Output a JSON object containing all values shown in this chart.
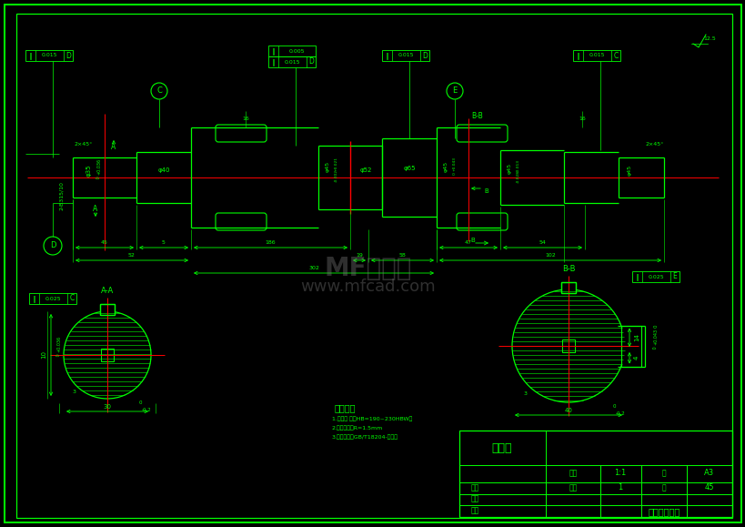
{
  "bg_color": "#000000",
  "gc": "#00ff00",
  "rc": "#ff0000",
  "wc": "#ffffff",
  "title_block": {
    "part_name": "输出轴",
    "scale": "1:1",
    "paper": "A3",
    "sheet": "1",
    "total": "45",
    "company": "机械课程设计",
    "label1": "材料",
    "label2": "审核",
    "label3": "批准",
    "label4": "比例",
    "label5": "版次",
    "label6": "张",
    "label7": "页"
  },
  "tech_req_title": "技术要求",
  "tech_req_lines": [
    "1.热处理 达到HB=190~230HBW．",
    "2.未注明圆觓R=1.5mm",
    "3.未注明公巪GB/T18204-未指定"
  ],
  "watermark1": "MF沐风网",
  "watermark2": "www.mfcad.com"
}
